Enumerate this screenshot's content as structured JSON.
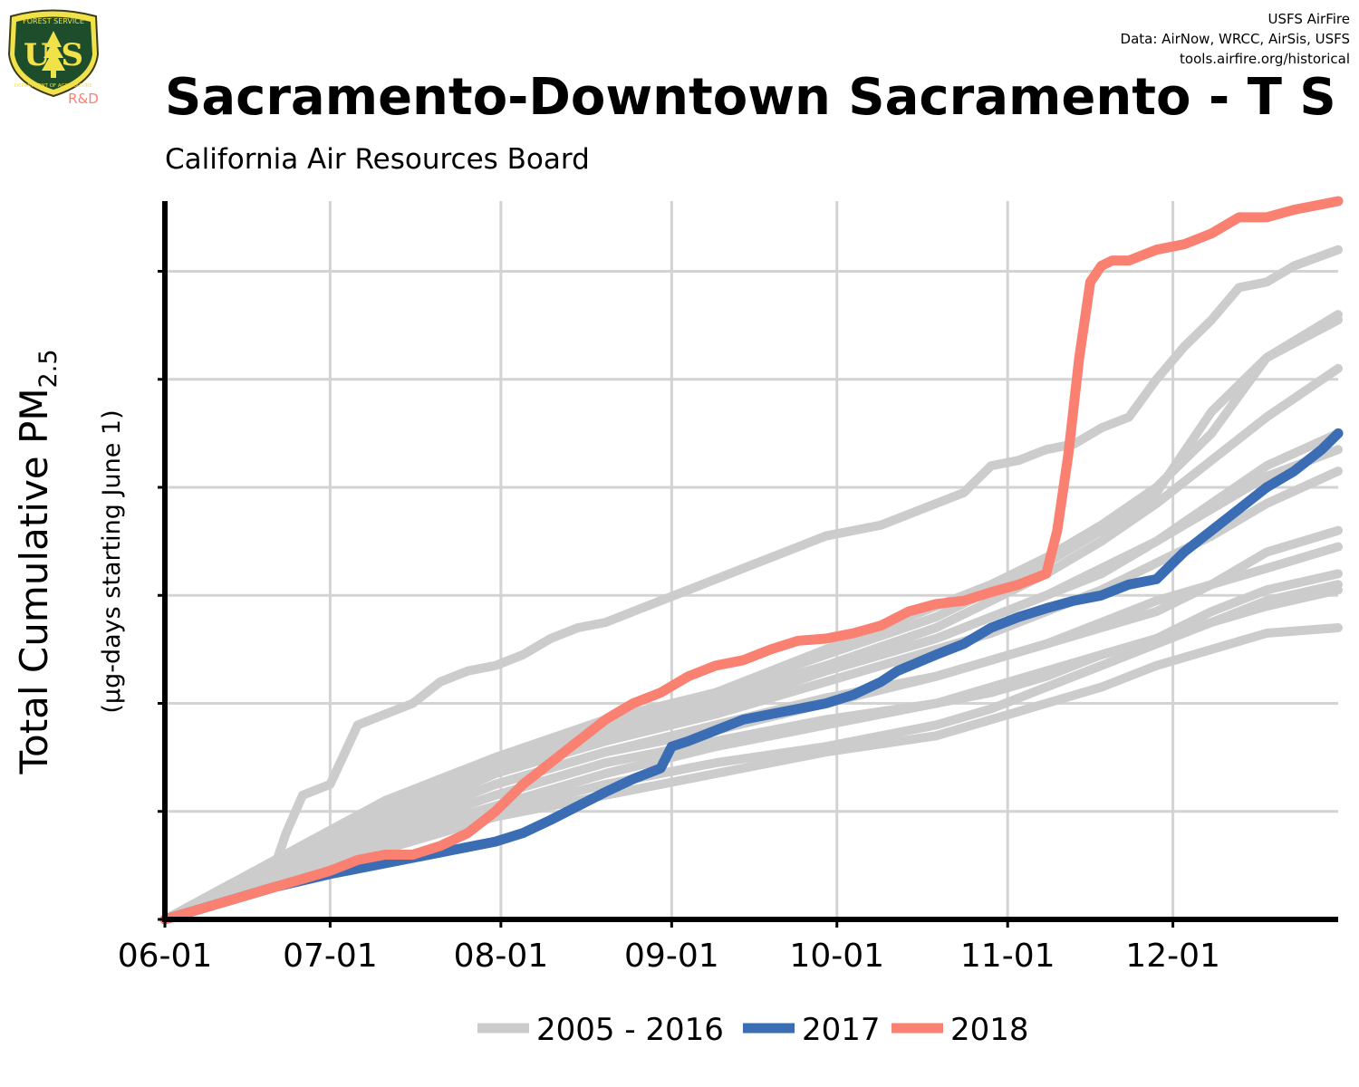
{
  "header": {
    "credit_line1": "USFS AirFire",
    "credit_line2": "Data: AirNow, WRCC, AirSis, USFS",
    "credit_line3": "tools.airfire.org/historical",
    "title": "Sacramento-Downtown Sacramento - T S",
    "subtitle": "California Air Resources Board"
  },
  "logo": {
    "top_text": "FOREST SERVICE",
    "letters": "U S",
    "bottom_text": "DEPARTMENT OF AGRICULTURE",
    "tag": "R&D"
  },
  "chart_data": {
    "type": "line",
    "title": "Sacramento-Downtown Sacramento - T S",
    "subtitle": "California Air Resources Board",
    "xlabel": "",
    "ylabel": "Total Cumulative PM",
    "ylabel_subscript": "2.5",
    "ylabel_sub": "(µg-days starting June 1)",
    "x_ticks": [
      "06-01",
      "07-01",
      "08-01",
      "09-01",
      "10-01",
      "11-01",
      "12-01"
    ],
    "x_tick_days": [
      0,
      30,
      61,
      92,
      122,
      153,
      183
    ],
    "xlim": [
      0,
      213
    ],
    "ylim": [
      0,
      6.65
    ],
    "y_gridlines": [
      1,
      2,
      3,
      4,
      5,
      6
    ],
    "y_tick_labels": [],
    "grid": true,
    "legend_position": "bottom",
    "colors": {
      "historical": "#cccccc",
      "y2017": "#3a6db3",
      "y2018": "#fa8072"
    },
    "legend": [
      {
        "label": "2005 - 2016",
        "color": "#cccccc"
      },
      {
        "label": "2017",
        "color": "#3a6db3"
      },
      {
        "label": "2018",
        "color": "#fa8072"
      }
    ],
    "series": [
      {
        "group": "historical",
        "x": [
          0,
          10,
          20,
          22,
          25,
          30,
          35,
          40,
          45,
          50,
          55,
          60,
          65,
          70,
          75,
          80,
          85,
          90,
          95,
          100,
          105,
          110,
          115,
          120,
          125,
          130,
          135,
          140,
          145,
          150,
          155,
          160,
          165,
          170,
          175,
          180,
          185,
          190,
          195,
          200,
          205,
          213
        ],
        "y": [
          0,
          0.25,
          0.5,
          0.8,
          1.15,
          1.25,
          1.8,
          1.9,
          2.0,
          2.2,
          2.3,
          2.35,
          2.45,
          2.6,
          2.7,
          2.75,
          2.85,
          2.95,
          3.05,
          3.15,
          3.25,
          3.35,
          3.45,
          3.55,
          3.6,
          3.65,
          3.75,
          3.85,
          3.95,
          4.2,
          4.25,
          4.35,
          4.4,
          4.55,
          4.65,
          5.0,
          5.3,
          5.55,
          5.85,
          5.9,
          6.05,
          6.2
        ]
      },
      {
        "group": "historical",
        "x": [
          0,
          20,
          40,
          60,
          80,
          100,
          120,
          140,
          150,
          160,
          170,
          180,
          190,
          200,
          213
        ],
        "y": [
          0,
          0.5,
          1.05,
          1.45,
          1.8,
          2.1,
          2.5,
          2.9,
          3.1,
          3.35,
          3.65,
          4.0,
          4.5,
          5.2,
          5.6
        ]
      },
      {
        "group": "historical",
        "x": [
          0,
          20,
          40,
          60,
          80,
          100,
          120,
          140,
          150,
          160,
          170,
          180,
          190,
          200,
          213
        ],
        "y": [
          0,
          0.55,
          1.1,
          1.5,
          1.85,
          2.1,
          2.45,
          2.8,
          3.05,
          3.3,
          3.6,
          3.95,
          4.7,
          5.2,
          5.55
        ]
      },
      {
        "group": "historical",
        "x": [
          0,
          20,
          40,
          60,
          80,
          100,
          120,
          140,
          150,
          160,
          170,
          180,
          190,
          200,
          213
        ],
        "y": [
          0,
          0.45,
          1.0,
          1.45,
          1.8,
          2.05,
          2.35,
          2.7,
          2.95,
          3.2,
          3.5,
          3.85,
          4.25,
          4.65,
          5.1
        ]
      },
      {
        "group": "historical",
        "x": [
          0,
          20,
          40,
          60,
          80,
          100,
          120,
          140,
          150,
          160,
          170,
          180,
          190,
          200,
          213
        ],
        "y": [
          0,
          0.45,
          0.95,
          1.4,
          1.75,
          2.0,
          2.3,
          2.6,
          2.8,
          3.0,
          3.25,
          3.5,
          3.85,
          4.2,
          4.5
        ]
      },
      {
        "group": "historical",
        "x": [
          0,
          20,
          40,
          60,
          80,
          100,
          120,
          140,
          150,
          160,
          170,
          180,
          190,
          200,
          213
        ],
        "y": [
          0,
          0.4,
          0.9,
          1.35,
          1.7,
          1.95,
          2.3,
          2.6,
          2.8,
          3.0,
          3.2,
          3.5,
          3.8,
          4.1,
          4.35
        ]
      },
      {
        "group": "historical",
        "x": [
          0,
          20,
          40,
          60,
          80,
          100,
          120,
          140,
          150,
          160,
          170,
          180,
          190,
          200,
          213
        ],
        "y": [
          0,
          0.45,
          0.95,
          1.35,
          1.65,
          1.9,
          2.2,
          2.5,
          2.65,
          2.85,
          3.05,
          3.3,
          3.55,
          3.85,
          4.15
        ]
      },
      {
        "group": "historical",
        "x": [
          0,
          20,
          40,
          60,
          80,
          100,
          120,
          140,
          150,
          160,
          170,
          180,
          190,
          200,
          213
        ],
        "y": [
          0,
          0.4,
          0.85,
          1.25,
          1.55,
          1.8,
          2.05,
          2.25,
          2.4,
          2.55,
          2.7,
          2.85,
          3.1,
          3.4,
          3.6
        ]
      },
      {
        "group": "historical",
        "x": [
          0,
          20,
          40,
          60,
          80,
          100,
          120,
          140,
          150,
          160,
          170,
          180,
          190,
          200,
          213
        ],
        "y": [
          0,
          0.4,
          0.85,
          1.25,
          1.55,
          1.75,
          2.0,
          2.25,
          2.4,
          2.55,
          2.75,
          2.95,
          3.1,
          3.25,
          3.45
        ]
      },
      {
        "group": "historical",
        "x": [
          0,
          20,
          40,
          60,
          80,
          100,
          120,
          140,
          150,
          160,
          170,
          180,
          190,
          200,
          213
        ],
        "y": [
          0,
          0.35,
          0.8,
          1.15,
          1.45,
          1.65,
          1.85,
          2.0,
          2.15,
          2.3,
          2.45,
          2.6,
          2.85,
          3.05,
          3.2
        ]
      },
      {
        "group": "historical",
        "x": [
          0,
          20,
          40,
          60,
          80,
          100,
          120,
          140,
          150,
          160,
          170,
          180,
          190,
          200,
          213
        ],
        "y": [
          0,
          0.35,
          0.75,
          1.05,
          1.35,
          1.6,
          1.8,
          2.0,
          2.1,
          2.25,
          2.45,
          2.6,
          2.75,
          2.9,
          3.05
        ]
      },
      {
        "group": "historical",
        "x": [
          0,
          20,
          40,
          60,
          80,
          100,
          120,
          140,
          150,
          160,
          170,
          180,
          190,
          200,
          213
        ],
        "y": [
          0,
          0.35,
          0.7,
          1.0,
          1.25,
          1.45,
          1.6,
          1.8,
          1.95,
          2.15,
          2.35,
          2.55,
          2.75,
          2.95,
          3.1
        ]
      },
      {
        "group": "historical",
        "x": [
          0,
          20,
          40,
          60,
          80,
          100,
          120,
          140,
          150,
          160,
          170,
          180,
          190,
          200,
          213
        ],
        "y": [
          0,
          0.3,
          0.65,
          0.95,
          1.15,
          1.35,
          1.55,
          1.7,
          1.85,
          2.0,
          2.15,
          2.35,
          2.5,
          2.65,
          2.7
        ]
      },
      {
        "group": "y2017",
        "name": "2017",
        "x": [
          0,
          10,
          20,
          30,
          40,
          50,
          60,
          65,
          70,
          75,
          80,
          85,
          90,
          92,
          95,
          100,
          105,
          110,
          115,
          120,
          125,
          130,
          133,
          140,
          145,
          150,
          155,
          160,
          165,
          170,
          175,
          180,
          185,
          190,
          195,
          200,
          205,
          210,
          213
        ],
        "y": [
          0,
          0.15,
          0.3,
          0.42,
          0.52,
          0.62,
          0.72,
          0.8,
          0.92,
          1.05,
          1.18,
          1.3,
          1.4,
          1.6,
          1.65,
          1.75,
          1.85,
          1.9,
          1.95,
          2.0,
          2.08,
          2.2,
          2.3,
          2.45,
          2.55,
          2.7,
          2.8,
          2.88,
          2.95,
          3.0,
          3.1,
          3.15,
          3.4,
          3.6,
          3.8,
          4.0,
          4.15,
          4.35,
          4.5
        ]
      },
      {
        "group": "y2018",
        "name": "2018",
        "x": [
          0,
          10,
          20,
          30,
          35,
          40,
          45,
          50,
          55,
          60,
          65,
          70,
          75,
          80,
          85,
          90,
          95,
          100,
          105,
          110,
          115,
          120,
          125,
          130,
          135,
          140,
          145,
          150,
          155,
          160,
          162,
          164,
          166,
          168,
          170,
          172,
          175,
          180,
          185,
          190,
          195,
          200,
          205,
          210,
          213
        ],
        "y": [
          0,
          0.15,
          0.3,
          0.45,
          0.55,
          0.6,
          0.6,
          0.68,
          0.8,
          1.0,
          1.25,
          1.45,
          1.65,
          1.85,
          2.0,
          2.1,
          2.25,
          2.35,
          2.4,
          2.5,
          2.58,
          2.6,
          2.65,
          2.72,
          2.85,
          2.92,
          2.95,
          3.03,
          3.1,
          3.2,
          3.6,
          4.3,
          5.2,
          5.9,
          6.05,
          6.1,
          6.1,
          6.2,
          6.25,
          6.35,
          6.5,
          6.5,
          6.57,
          6.62,
          6.65
        ]
      }
    ]
  }
}
